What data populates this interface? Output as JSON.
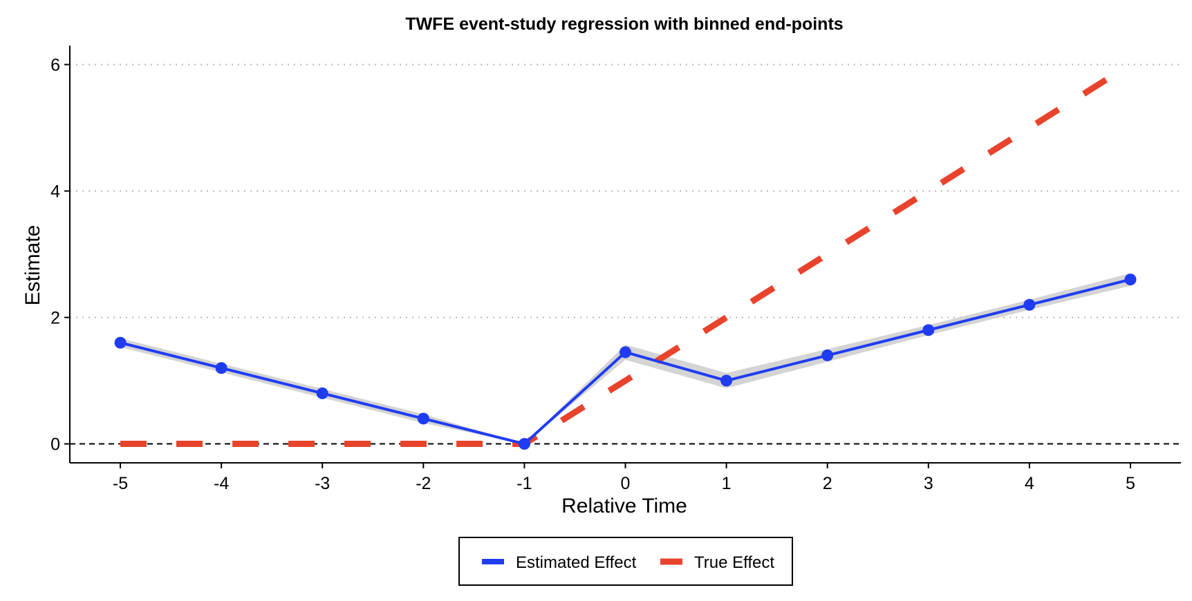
{
  "chart_data": {
    "type": "line",
    "title": "TWFE event-study regression with binned end-points",
    "xlabel": "Relative Time",
    "ylabel": "Estimate",
    "x": [
      -5,
      -4,
      -3,
      -2,
      -1,
      0,
      1,
      2,
      3,
      4,
      5
    ],
    "xlim": [
      -5.5,
      5.5
    ],
    "ylim": [
      -0.3,
      6.3
    ],
    "x_ticks": [
      -5,
      -4,
      -3,
      -2,
      -1,
      0,
      1,
      2,
      3,
      4,
      5
    ],
    "y_ticks": [
      0,
      2,
      4,
      6
    ],
    "grid": "horizontal dotted",
    "legend_position": "bottom",
    "reference_line_y": 0,
    "series": [
      {
        "name": "Estimated Effect",
        "color": "#1f3cf2",
        "style": "solid",
        "markers": true,
        "values": [
          1.6,
          1.2,
          0.8,
          0.4,
          0.0,
          1.45,
          1.0,
          1.4,
          1.8,
          2.2,
          2.6
        ],
        "ci_lower": [
          1.53,
          1.13,
          0.73,
          0.33,
          0.0,
          1.33,
          0.88,
          1.3,
          1.72,
          2.12,
          2.5
        ],
        "ci_upper": [
          1.67,
          1.27,
          0.87,
          0.47,
          0.0,
          1.57,
          1.12,
          1.5,
          1.88,
          2.28,
          2.7
        ],
        "ci_color": "#cccccc"
      },
      {
        "name": "True Effect",
        "color": "#e8432d",
        "style": "dashed",
        "markers": false,
        "values": [
          0,
          0,
          0,
          0,
          0,
          1,
          2,
          3,
          4,
          5,
          6
        ]
      }
    ]
  }
}
